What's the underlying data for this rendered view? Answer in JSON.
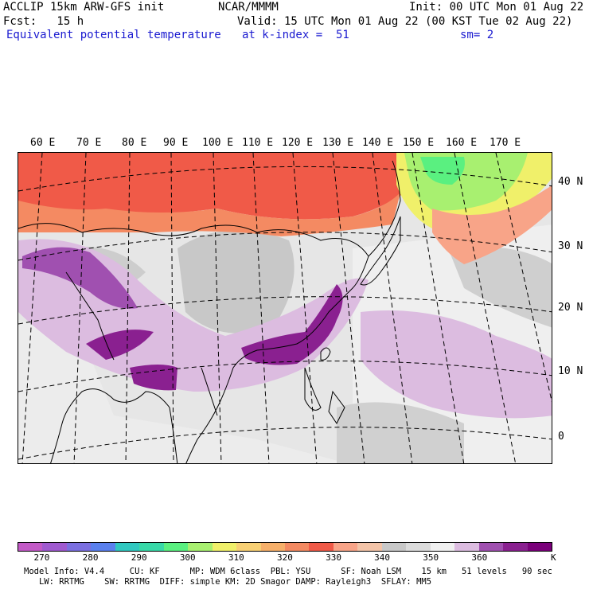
{
  "header": {
    "model": "ACCLIP 15km ARW-GFS init",
    "institution": "NCAR/MMMM",
    "init": "Init: 00 UTC Mon 01 Aug 22",
    "fcst": "Fcst:   15 h",
    "valid": "Valid: 15 UTC Mon 01 Aug 22 (00 KST Tue 02 Aug 22)",
    "field": "Equivalent potential temperature",
    "level": "at k-index =  51",
    "smooth": "sm= 2"
  },
  "map": {
    "lon_labels": [
      "60 E",
      "70 E",
      "80 E",
      "90 E",
      "100 E",
      "110 E",
      "120 E",
      "130 E",
      "140 E",
      "150 E",
      "160 E",
      "170 E"
    ],
    "lat_labels": [
      "40 N",
      "30 N",
      "20 N",
      "10 N",
      "0"
    ]
  },
  "colorbar": {
    "colors": [
      "#c35ac7",
      "#a05ad0",
      "#7b6fe0",
      "#5a80ee",
      "#30c8c0",
      "#38d9a8",
      "#5af080",
      "#a8f070",
      "#f0f06a",
      "#f8d074",
      "#f7b06a",
      "#f48a62",
      "#f05a48",
      "#f8a488",
      "#f4c4a8",
      "#c8c8c8",
      "#dcdcdc",
      "#f0f0f0",
      "#dcbce0",
      "#a050b0",
      "#8a2090",
      "#7a007a"
    ],
    "tick_labels": [
      "270",
      "280",
      "290",
      "300",
      "310",
      "320",
      "330",
      "340",
      "350",
      "360"
    ],
    "unit": "K"
  },
  "footer": {
    "line1": "Model Info: V4.4     CU: KF      MP: WDM 6class  PBL: YSU      SF: Noah LSM    15 km   51 levels   90 sec",
    "line2": "   LW: RRTMG    SW: RRTMG  DIFF: simple KM: 2D Smagor DAMP: Rayleigh3  SFLAY: MM5"
  }
}
